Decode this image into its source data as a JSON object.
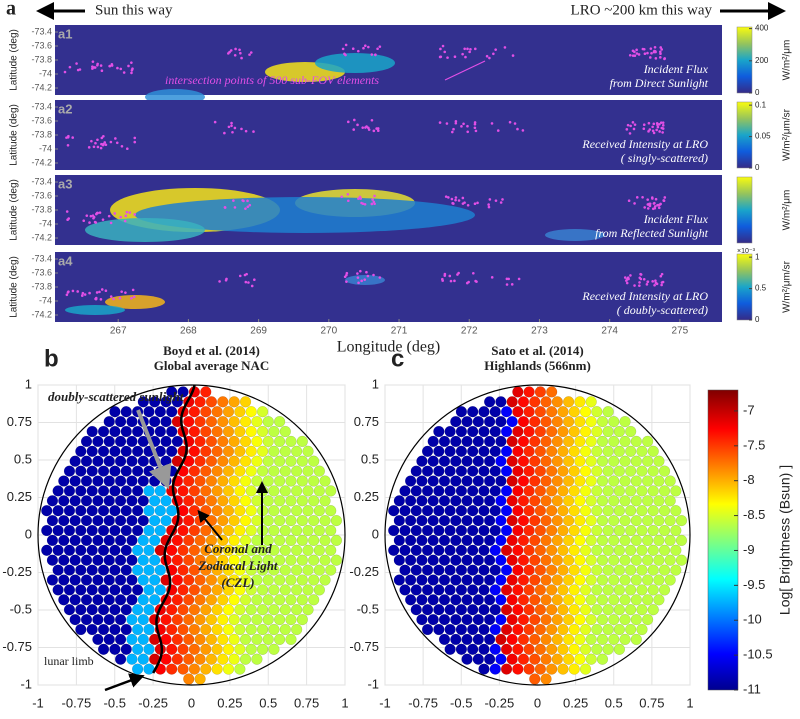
{
  "header": {
    "panel_label": "a",
    "left_arrow_text": "Sun this way",
    "right_arrow_text": "LRO ~200 km this way"
  },
  "chart_data": [
    {
      "type": "heatmap",
      "panel_label": "a1",
      "ylabel": "Latitude (deg)",
      "annotation": [
        "Incident Flux",
        "from Direct Sunlight"
      ],
      "note": "intersection points of 500 sub-FOV elements",
      "xlim": [
        266.1,
        275.6
      ],
      "ylim": [
        -74.3,
        -73.3
      ],
      "yticks": [
        -73.4,
        -73.6,
        -73.8,
        -74,
        -74.2
      ],
      "colorbar": {
        "label": "W/m²/μm",
        "clim": [
          0,
          410
        ],
        "ticks": [
          0,
          200,
          400
        ]
      }
    },
    {
      "type": "heatmap",
      "panel_label": "a2",
      "ylabel": "Latitude (deg)",
      "annotation": [
        "Received Intensity at LRO",
        "( singly-scattered)"
      ],
      "xlim": [
        266.1,
        275.6
      ],
      "ylim": [
        -74.3,
        -73.3
      ],
      "yticks": [
        -73.4,
        -73.6,
        -73.8,
        -74,
        -74.2
      ],
      "colorbar": {
        "label": "W/m²/μm/sr",
        "clim": [
          0,
          0.105
        ],
        "ticks": [
          0,
          0.05,
          0.1
        ]
      }
    },
    {
      "type": "heatmap",
      "panel_label": "a3",
      "ylabel": "Latitude (deg)",
      "annotation": [
        "Incident Flux",
        "from Reflected Sunlight"
      ],
      "xlim": [
        266.1,
        275.6
      ],
      "ylim": [
        -74.3,
        -73.3
      ],
      "yticks": [
        -73.4,
        -73.6,
        -73.8,
        -74,
        -74.2
      ],
      "colorbar": {
        "label": "W/m²/μm"
      }
    },
    {
      "type": "heatmap",
      "panel_label": "a4",
      "ylabel": "Latitude (deg)",
      "annotation": [
        "Received Intensity at LRO",
        "( doubly-scattered)"
      ],
      "xlabel": "Longitude (deg)",
      "xlim": [
        266.1,
        275.6
      ],
      "ylim": [
        -74.3,
        -73.3
      ],
      "xticks": [
        267,
        268,
        269,
        270,
        271,
        272,
        273,
        274,
        275
      ],
      "yticks": [
        -73.4,
        -73.6,
        -73.8,
        -74,
        -74.2
      ],
      "colorbar": {
        "label": "W/m²/μm/sr",
        "exponent": "×10⁻³",
        "clim": [
          0,
          1.05
        ],
        "ticks": [
          0,
          0.5,
          1
        ]
      }
    },
    {
      "type": "scatter",
      "panel_label": "b",
      "title": [
        "Boyd et al. (2014)",
        "Global average NAC"
      ],
      "annotations": {
        "doubly_scattered": "doubly-scattered sunlight",
        "czl": [
          "Coronal and",
          "Zodiacal Light",
          "(CZL)"
        ],
        "lunar_limb": "lunar limb"
      },
      "xlim": [
        -1,
        1
      ],
      "ylim": [
        -1,
        1
      ],
      "xticks": [
        -1,
        -0.75,
        -0.5,
        -0.25,
        0,
        0.25,
        0.5,
        0.75,
        1
      ],
      "yticks": [
        -1,
        -0.75,
        -0.5,
        -0.25,
        0,
        0.25,
        0.5,
        0.75,
        1
      ],
      "grid": true
    },
    {
      "type": "scatter",
      "panel_label": "c",
      "title": [
        "Sato et al. (2014)",
        "Highlands (566nm)"
      ],
      "xlim": [
        -1,
        1
      ],
      "ylim": [
        -1,
        1
      ],
      "xticks": [
        -1,
        -0.75,
        -0.5,
        -0.25,
        0,
        0.25,
        0.5,
        0.75,
        1
      ],
      "yticks": [
        -1,
        -0.75,
        -0.5,
        -0.25,
        0,
        0.25,
        0.5,
        0.75,
        1
      ],
      "grid": true,
      "colorbar": {
        "label": "Log[ Brightness (Bsun) ]",
        "clim": [
          -11,
          -6.7
        ],
        "ticks": [
          -7,
          -7.5,
          -8,
          -8.5,
          -9,
          -9.5,
          -10,
          -10.5,
          -11
        ]
      }
    }
  ]
}
